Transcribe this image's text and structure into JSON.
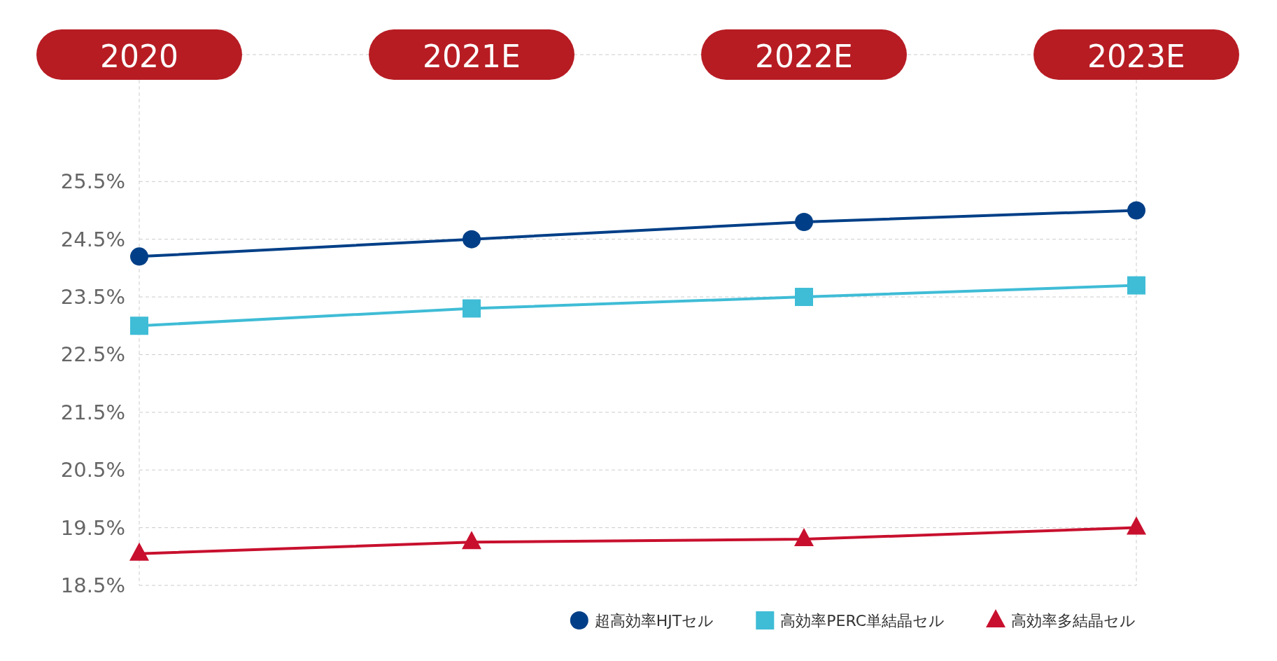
{
  "chart_data": {
    "type": "line",
    "categories": [
      "2020",
      "2021E",
      "2022E",
      "2023E"
    ],
    "series": [
      {
        "name": "超高効率HJTセル",
        "color": "#003f87",
        "marker": "circle",
        "values": [
          24.2,
          24.5,
          24.8,
          25.0
        ]
      },
      {
        "name": "高効率PERC単結晶セル",
        "color": "#3fbcd6",
        "marker": "square",
        "values": [
          23.0,
          23.3,
          23.5,
          23.7
        ]
      },
      {
        "name": "高効率多結晶セル",
        "color": "#c8102e",
        "marker": "triangle",
        "values": [
          19.05,
          19.25,
          19.3,
          19.5
        ]
      }
    ],
    "ylim": [
      18.5,
      27.7
    ],
    "yticks": [
      {
        "value": 18.5,
        "label": "18.5%"
      },
      {
        "value": 19.5,
        "label": "19.5%"
      },
      {
        "value": 20.5,
        "label": "20.5%"
      },
      {
        "value": 21.5,
        "label": "21.5%"
      },
      {
        "value": 22.5,
        "label": "22.5%"
      },
      {
        "value": 23.5,
        "label": "23.5%"
      },
      {
        "value": 24.5,
        "label": "24.5%"
      },
      {
        "value": 25.5,
        "label": "25.5%"
      }
    ],
    "grid": "y",
    "legend": "bottom right"
  }
}
